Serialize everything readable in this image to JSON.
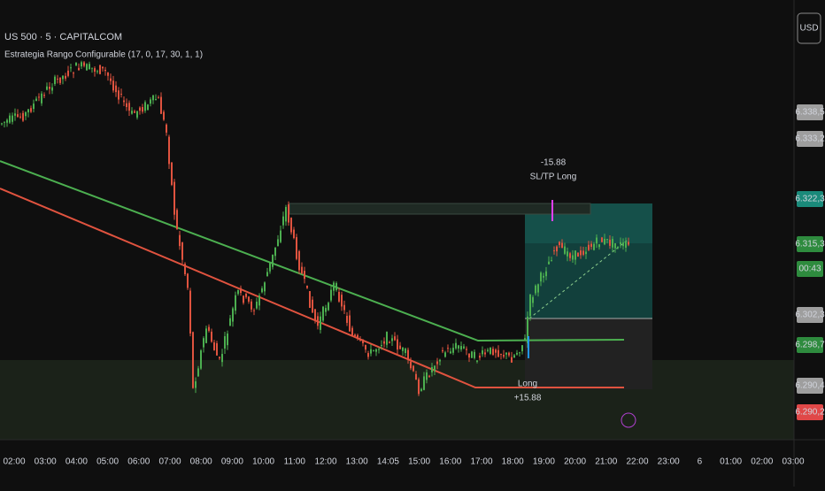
{
  "header": {
    "symbol": "US 500 · 5 · CAPITALCOM",
    "indicator": "Estrategia Rango Configurable (17, 0, 17, 30, 1, 1)",
    "currency": "USD"
  },
  "price_axis": {
    "tags": [
      {
        "text": "6.338,5",
        "kind": "grey"
      },
      {
        "text": "6.333,2",
        "kind": "grey"
      },
      {
        "text": "6.322,3",
        "kind": "teal"
      },
      {
        "text": "6.315,3",
        "kind": "green"
      },
      {
        "text": "00:43",
        "kind": "green"
      },
      {
        "text": "6.302,3",
        "kind": "grey"
      },
      {
        "text": "6.298,7",
        "kind": "green"
      },
      {
        "text": "6.290,4",
        "kind": "grey"
      },
      {
        "text": "6.290,2",
        "kind": "red"
      }
    ]
  },
  "time_axis": [
    "02:00",
    "03:00",
    "04:00",
    "05:00",
    "06:00",
    "07:00",
    "08:00",
    "09:00",
    "10:00",
    "11:00",
    "12:00",
    "13:00",
    "14:05",
    "15:00",
    "16:00",
    "17:00",
    "18:00",
    "19:00",
    "20:00",
    "21:00",
    "22:00",
    "23:00",
    "6",
    "01:00",
    "02:00",
    "03:00"
  ],
  "annotations": {
    "exit_value": "-15.88",
    "exit_label": "SL/TP Long",
    "entry_label": "Long",
    "entry_value": "+15.88"
  }
}
